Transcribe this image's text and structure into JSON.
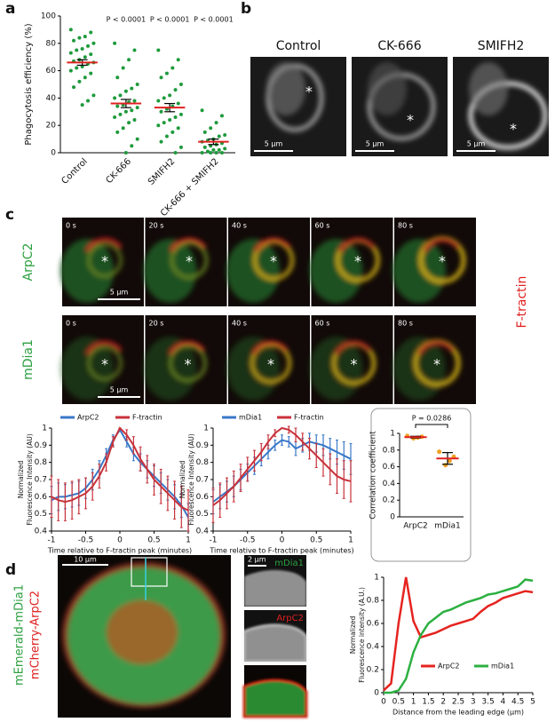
{
  "figure": {
    "panel_letters": [
      "a",
      "b",
      "c",
      "d"
    ]
  },
  "panel_b": {
    "titles": [
      "Control",
      "CK-666",
      "SMIFH2"
    ],
    "scale_bar": "5 µm",
    "asterisk": "*"
  },
  "panel_c": {
    "rows": [
      "ArpC2",
      "mDia1"
    ],
    "overlay": "F-tractin",
    "times": [
      "0 s",
      "20 s",
      "40 s",
      "60 s",
      "80 s"
    ],
    "scale_bar": "5 µm",
    "asterisk": "*"
  },
  "panel_d": {
    "channels": [
      "mEmerald-mDia1",
      "mCherry-ArpC2"
    ],
    "scale_bar_large": "10 µm",
    "scale_bar_small": "2 µm",
    "insets": [
      "mDia1",
      "ArpC2"
    ]
  },
  "chart_data": [
    {
      "type": "strip",
      "ylabel": "Phagocytosis efficiency (%)",
      "categories": [
        "Control",
        "CK-666",
        "SMIFH2",
        "CK-666 + SMIFH2"
      ],
      "p_values": [
        null,
        "P < 0.0001",
        "P < 0.0001",
        "P < 0.0001"
      ],
      "points": [
        [
          90,
          88,
          85,
          84,
          82,
          80,
          78,
          76,
          75,
          73,
          72,
          70,
          68,
          67,
          66,
          65,
          63,
          62,
          60,
          58,
          55,
          52,
          48,
          42,
          38,
          35
        ],
        [
          80,
          75,
          68,
          62,
          55,
          50,
          47,
          45,
          42,
          40,
          38,
          37,
          35,
          34,
          33,
          31,
          30,
          28,
          26,
          24,
          22,
          18,
          15,
          10,
          5,
          0
        ],
        [
          75,
          68,
          62,
          58,
          55,
          50,
          46,
          42,
          40,
          38,
          36,
          34,
          32,
          30,
          28,
          26,
          24,
          22,
          20,
          18,
          15,
          12,
          8,
          4,
          0
        ],
        [
          31,
          27,
          22,
          18,
          15,
          13,
          12,
          10,
          9,
          8,
          7,
          6,
          5,
          4,
          3,
          2,
          2,
          1,
          0,
          0,
          0,
          0
        ]
      ],
      "means": [
        66,
        36,
        33,
        8
      ],
      "sem": [
        2,
        3,
        3,
        2
      ],
      "color": "#1e9a3c",
      "mean_color": "#e02020",
      "ylim": [
        0,
        100
      ],
      "yticks": [
        0,
        20,
        40,
        60,
        80,
        100
      ]
    },
    {
      "type": "line",
      "ylabel": [
        "Normalized",
        "Fluorescence  Intensity (AU)"
      ],
      "xlabel": "Time relative to F-tractin peak (minutes)",
      "legend": "top",
      "x": [
        -1,
        -0.9,
        -0.8,
        -0.7,
        -0.6,
        -0.5,
        -0.4,
        -0.3,
        -0.2,
        -0.1,
        0,
        0.1,
        0.2,
        0.3,
        0.4,
        0.5,
        0.6,
        0.7,
        0.8,
        0.9,
        1
      ],
      "series": [
        {
          "name": "ArpC2",
          "color": "#3a78c8",
          "values": [
            0.58,
            0.6,
            0.6,
            0.61,
            0.62,
            0.65,
            0.7,
            0.76,
            0.84,
            0.93,
            0.99,
            0.92,
            0.85,
            0.8,
            0.76,
            0.72,
            0.68,
            0.64,
            0.6,
            0.55,
            0.48
          ],
          "errors": [
            0.08,
            0.08,
            0.07,
            0.07,
            0.07,
            0.06,
            0.06,
            0.05,
            0.04,
            0.03,
            0.01,
            0.03,
            0.04,
            0.05,
            0.05,
            0.06,
            0.06,
            0.06,
            0.07,
            0.07,
            0.08
          ]
        },
        {
          "name": "F-tractin",
          "color": "#c8323a",
          "values": [
            0.6,
            0.58,
            0.57,
            0.58,
            0.6,
            0.62,
            0.66,
            0.72,
            0.8,
            0.92,
            1,
            0.96,
            0.9,
            0.82,
            0.76,
            0.7,
            0.66,
            0.62,
            0.58,
            0.54,
            0.52
          ],
          "errors": [
            0.12,
            0.12,
            0.11,
            0.11,
            0.1,
            0.09,
            0.08,
            0.07,
            0.05,
            0.03,
            0,
            0.03,
            0.05,
            0.07,
            0.08,
            0.09,
            0.1,
            0.1,
            0.11,
            0.12,
            0.12
          ]
        }
      ],
      "xlim": [
        -1,
        1
      ],
      "xticks": [
        -1,
        -0.5,
        0,
        0.5,
        1
      ],
      "ylim": [
        0.4,
        1
      ],
      "yticks": [
        0.4,
        0.5,
        0.6,
        0.7,
        0.8,
        0.9,
        1
      ]
    },
    {
      "type": "line",
      "ylabel": [
        "Normalized",
        "Fluorescence  Intensity (AU)"
      ],
      "xlabel": "Time relative to F-tractin peak (minutes)",
      "legend": "top",
      "x": [
        -1,
        -0.9,
        -0.8,
        -0.7,
        -0.6,
        -0.5,
        -0.4,
        -0.3,
        -0.2,
        -0.1,
        0,
        0.1,
        0.2,
        0.3,
        0.4,
        0.5,
        0.6,
        0.7,
        0.8,
        0.9,
        1
      ],
      "series": [
        {
          "name": "mDia1",
          "color": "#3a78c8",
          "values": [
            0.57,
            0.6,
            0.63,
            0.66,
            0.7,
            0.74,
            0.78,
            0.82,
            0.86,
            0.9,
            0.93,
            0.92,
            0.88,
            0.9,
            0.92,
            0.91,
            0.9,
            0.88,
            0.86,
            0.84,
            0.82
          ],
          "errors": [
            0.07,
            0.07,
            0.06,
            0.06,
            0.06,
            0.05,
            0.05,
            0.04,
            0.04,
            0.03,
            0.03,
            0.03,
            0.04,
            0.04,
            0.05,
            0.05,
            0.06,
            0.06,
            0.07,
            0.08,
            0.09
          ]
        },
        {
          "name": "F-tractin",
          "color": "#c8323a",
          "values": [
            0.55,
            0.58,
            0.62,
            0.66,
            0.71,
            0.76,
            0.81,
            0.86,
            0.92,
            0.97,
            1,
            0.99,
            0.96,
            0.92,
            0.88,
            0.84,
            0.8,
            0.76,
            0.72,
            0.7,
            0.69
          ],
          "errors": [
            0.1,
            0.1,
            0.09,
            0.09,
            0.08,
            0.07,
            0.06,
            0.05,
            0.04,
            0.02,
            0,
            0.02,
            0.04,
            0.05,
            0.06,
            0.07,
            0.08,
            0.09,
            0.1,
            0.11,
            0.12
          ]
        }
      ],
      "xlim": [
        -1,
        1
      ],
      "xticks": [
        -1,
        -0.5,
        0,
        0.5,
        1
      ],
      "ylim": [
        0.4,
        1
      ],
      "yticks": [
        0.4,
        0.5,
        0.6,
        0.7,
        0.8,
        0.9,
        1
      ]
    },
    {
      "type": "strip",
      "ylabel": "Correlation coefficient",
      "p_value": "P = 0.0286",
      "categories": [
        "ArpC2",
        "mDia1"
      ],
      "points": [
        [
          0.97,
          0.96,
          0.95,
          0.94
        ],
        [
          0.78,
          0.72,
          0.67,
          0.62
        ]
      ],
      "means": [
        0.955,
        0.7
      ],
      "sem": [
        0.01,
        0.07
      ],
      "color": "#f0a020",
      "mean_color": "#e02020",
      "ylim": [
        0,
        1
      ],
      "yticks": [
        0,
        0.2,
        0.4,
        0.6,
        0.8,
        1
      ]
    },
    {
      "type": "line",
      "ylabel": [
        "Normalized",
        "Fluorescence intensity (A.U.)"
      ],
      "xlabel": "Distance from the leading edge (µm)",
      "legend": "lower right",
      "x": [
        0,
        0.25,
        0.5,
        0.75,
        1,
        1.25,
        1.5,
        1.75,
        2,
        2.25,
        2.5,
        2.75,
        3,
        3.25,
        3.5,
        3.75,
        4,
        4.25,
        4.5,
        4.75,
        5
      ],
      "series": [
        {
          "name": "ArpC2",
          "color": "#e52420",
          "values": [
            0.02,
            0.08,
            0.6,
            1,
            0.62,
            0.48,
            0.5,
            0.52,
            0.55,
            0.58,
            0.6,
            0.62,
            0.64,
            0.7,
            0.75,
            0.78,
            0.82,
            0.84,
            0.86,
            0.88,
            0.87
          ]
        },
        {
          "name": "mDia1",
          "color": "#2cb040",
          "values": [
            0,
            0,
            0.02,
            0.12,
            0.35,
            0.5,
            0.6,
            0.65,
            0.7,
            0.72,
            0.75,
            0.78,
            0.8,
            0.82,
            0.85,
            0.86,
            0.88,
            0.9,
            0.92,
            0.98,
            0.97
          ]
        }
      ],
      "xlim": [
        0,
        5
      ],
      "xticks": [
        0,
        0.5,
        1,
        1.5,
        2,
        2.5,
        3,
        3.5,
        4,
        4.5,
        5
      ],
      "ylim": [
        0,
        1
      ],
      "yticks": [
        0,
        0.2,
        0.4,
        0.6,
        0.8,
        1
      ]
    }
  ]
}
